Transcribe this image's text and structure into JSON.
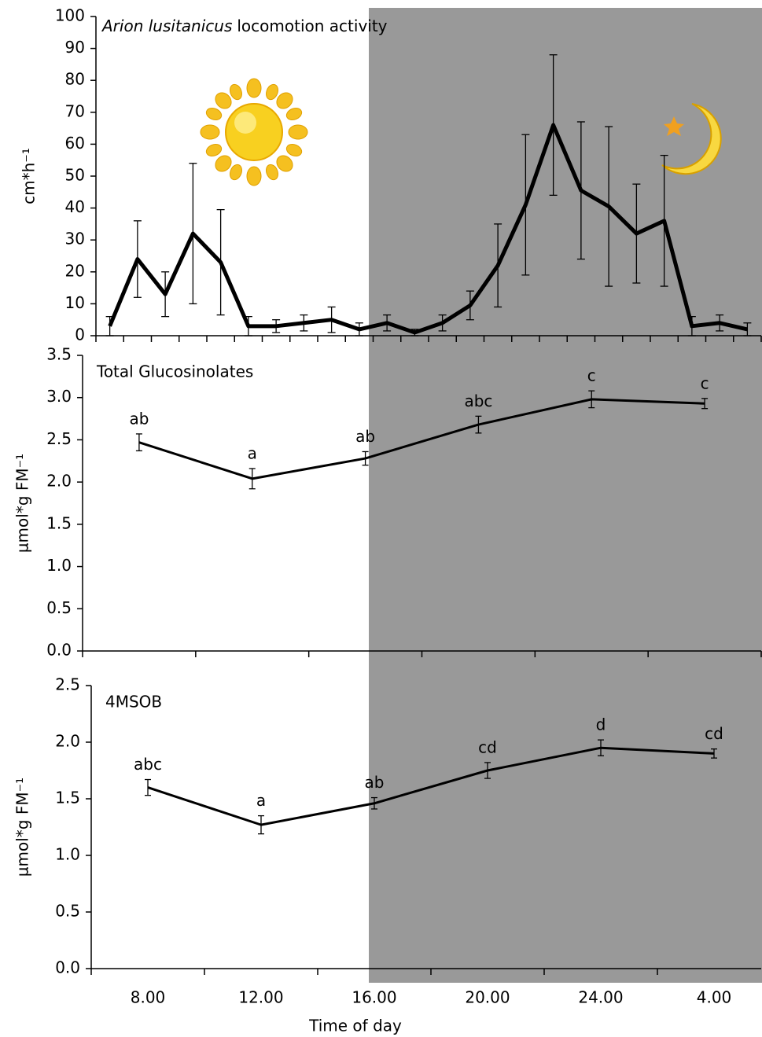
{
  "chart_data": [
    {
      "type": "line",
      "title": [
        "Arion lusitanicus",
        "locomotion activity"
      ],
      "y_label": "cm*h⁻¹",
      "categories": [
        null,
        null,
        null,
        null,
        null,
        null,
        null,
        null,
        null,
        null,
        null,
        null,
        null,
        null,
        null,
        null,
        null,
        null,
        null,
        null,
        null,
        null,
        null,
        null
      ],
      "values": [
        3,
        24,
        13,
        32,
        23,
        3,
        3,
        4,
        5,
        2,
        4,
        1,
        4,
        9.5,
        22,
        41,
        66,
        45.5,
        40.5,
        32,
        36,
        3,
        4,
        2
      ],
      "errors": [
        3,
        12,
        7,
        22,
        16.5,
        3,
        2,
        2.5,
        4,
        2,
        2.5,
        1,
        2.5,
        4.5,
        13,
        22,
        22,
        21.5,
        25,
        15.5,
        20.5,
        3,
        2.5,
        2
      ],
      "color": "#000000",
      "ylim": [
        0,
        100
      ],
      "yticks": [
        0,
        10,
        20,
        30,
        40,
        50,
        60,
        70,
        80,
        90,
        100
      ]
    },
    {
      "type": "line",
      "title": "Total Glucosinolates",
      "y_label": "µmol*g FM⁻¹",
      "categories": [
        null,
        null,
        null,
        null,
        null,
        null
      ],
      "values": [
        2.47,
        2.04,
        2.28,
        2.68,
        2.98,
        2.93
      ],
      "errors": [
        0.1,
        0.12,
        0.08,
        0.1,
        0.1,
        0.06
      ],
      "annotations": [
        "ab",
        "a",
        "ab",
        "abc",
        "c",
        "c"
      ],
      "color": "#000000",
      "ylim": [
        0,
        3.5
      ],
      "yticks": [
        {
          "value": 0,
          "label": "0.0"
        },
        0.5,
        {
          "value": 1,
          "label": "1.0"
        },
        1.5,
        {
          "value": 2,
          "label": "2.0"
        },
        2.5,
        {
          "value": 3,
          "label": "3.0"
        },
        3.5
      ]
    },
    {
      "type": "line",
      "title": "4MSOB",
      "y_label": "µmol*g FM⁻¹",
      "x_label": "Time of day",
      "categories": [
        "8.00",
        "12.00",
        "16.00",
        "20.00",
        "24.00",
        "4.00"
      ],
      "values": [
        1.6,
        1.27,
        1.46,
        1.75,
        1.95,
        1.9
      ],
      "errors": [
        0.07,
        0.08,
        0.05,
        0.07,
        0.07,
        0.04
      ],
      "annotations": [
        "abc",
        "a",
        "ab",
        "cd",
        "d",
        "cd"
      ],
      "color": "#000000",
      "ylim": [
        0,
        2.5
      ],
      "yticks": [
        {
          "value": 0,
          "label": "0.0"
        },
        0.5,
        {
          "value": 1,
          "label": "1.0"
        },
        1.5,
        {
          "value": 2,
          "label": "2.0"
        },
        2.5
      ]
    }
  ]
}
